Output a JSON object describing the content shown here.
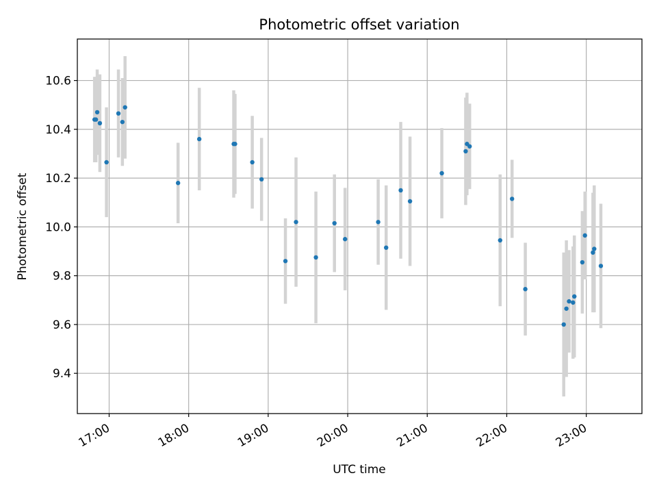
{
  "chart_data": {
    "type": "scatter",
    "title": "Photometric offset variation",
    "xlabel": "UTC time",
    "ylabel": "Photometric offset",
    "x_axis_type": "time",
    "xlim": [
      "16:36",
      "23:42"
    ],
    "ylim": [
      9.235,
      10.77
    ],
    "x_ticks": [
      "17:00",
      "18:00",
      "19:00",
      "20:00",
      "21:00",
      "22:00",
      "23:00"
    ],
    "y_ticks": [
      9.4,
      9.6,
      9.8,
      10.0,
      10.2,
      10.4,
      10.6
    ],
    "y_tick_labels": [
      "9.4",
      "9.6",
      "9.8",
      "10.0",
      "10.2",
      "10.4",
      "10.6"
    ],
    "grid": true,
    "legend": "none",
    "colors": {
      "marker": "#1f77b4",
      "errorbar": "#d3d3d3",
      "grid": "#b0b0b0"
    },
    "points": [
      {
        "t": "16:49",
        "y": 10.44,
        "err": 0.175
      },
      {
        "t": "16:50",
        "y": 10.44,
        "err": 0.175
      },
      {
        "t": "16:51",
        "y": 10.47,
        "err": 0.175
      },
      {
        "t": "16:53",
        "y": 10.425,
        "err": 0.2
      },
      {
        "t": "16:58",
        "y": 10.265,
        "err": 0.225
      },
      {
        "t": "17:07",
        "y": 10.465,
        "err": 0.18
      },
      {
        "t": "17:10",
        "y": 10.43,
        "err": 0.18
      },
      {
        "t": "17:12",
        "y": 10.49,
        "err": 0.21
      },
      {
        "t": "17:52",
        "y": 10.18,
        "err": 0.165
      },
      {
        "t": "18:08",
        "y": 10.36,
        "err": 0.21
      },
      {
        "t": "18:34",
        "y": 10.34,
        "err": 0.22
      },
      {
        "t": "18:35",
        "y": 10.34,
        "err": 0.205
      },
      {
        "t": "18:48",
        "y": 10.265,
        "err": 0.19
      },
      {
        "t": "18:55",
        "y": 10.195,
        "err": 0.17
      },
      {
        "t": "19:13",
        "y": 9.86,
        "err": 0.175
      },
      {
        "t": "19:21",
        "y": 10.02,
        "err": 0.265
      },
      {
        "t": "19:36",
        "y": 9.875,
        "err": 0.27
      },
      {
        "t": "19:50",
        "y": 10.015,
        "err": 0.2
      },
      {
        "t": "19:58",
        "y": 9.95,
        "err": 0.21
      },
      {
        "t": "20:23",
        "y": 10.02,
        "err": 0.175
      },
      {
        "t": "20:29",
        "y": 9.915,
        "err": 0.255
      },
      {
        "t": "20:40",
        "y": 10.15,
        "err": 0.28
      },
      {
        "t": "20:47",
        "y": 10.105,
        "err": 0.265
      },
      {
        "t": "21:11",
        "y": 10.22,
        "err": 0.185
      },
      {
        "t": "21:29",
        "y": 10.31,
        "err": 0.22
      },
      {
        "t": "21:30",
        "y": 10.34,
        "err": 0.21
      },
      {
        "t": "21:32",
        "y": 10.33,
        "err": 0.175
      },
      {
        "t": "21:55",
        "y": 9.945,
        "err": 0.27
      },
      {
        "t": "22:04",
        "y": 10.115,
        "err": 0.16
      },
      {
        "t": "22:14",
        "y": 9.745,
        "err": 0.19
      },
      {
        "t": "22:43",
        "y": 9.6,
        "err": 0.295
      },
      {
        "t": "22:45",
        "y": 9.665,
        "err": 0.28
      },
      {
        "t": "22:47",
        "y": 9.695,
        "err": 0.21
      },
      {
        "t": "22:50",
        "y": 9.69,
        "err": 0.23
      },
      {
        "t": "22:51",
        "y": 9.715,
        "err": 0.25
      },
      {
        "t": "22:57",
        "y": 9.855,
        "err": 0.21
      },
      {
        "t": "22:59",
        "y": 9.965,
        "err": 0.18
      },
      {
        "t": "23:05",
        "y": 9.895,
        "err": 0.245
      },
      {
        "t": "23:06",
        "y": 9.91,
        "err": 0.26
      },
      {
        "t": "23:11",
        "y": 9.84,
        "err": 0.255
      }
    ]
  }
}
